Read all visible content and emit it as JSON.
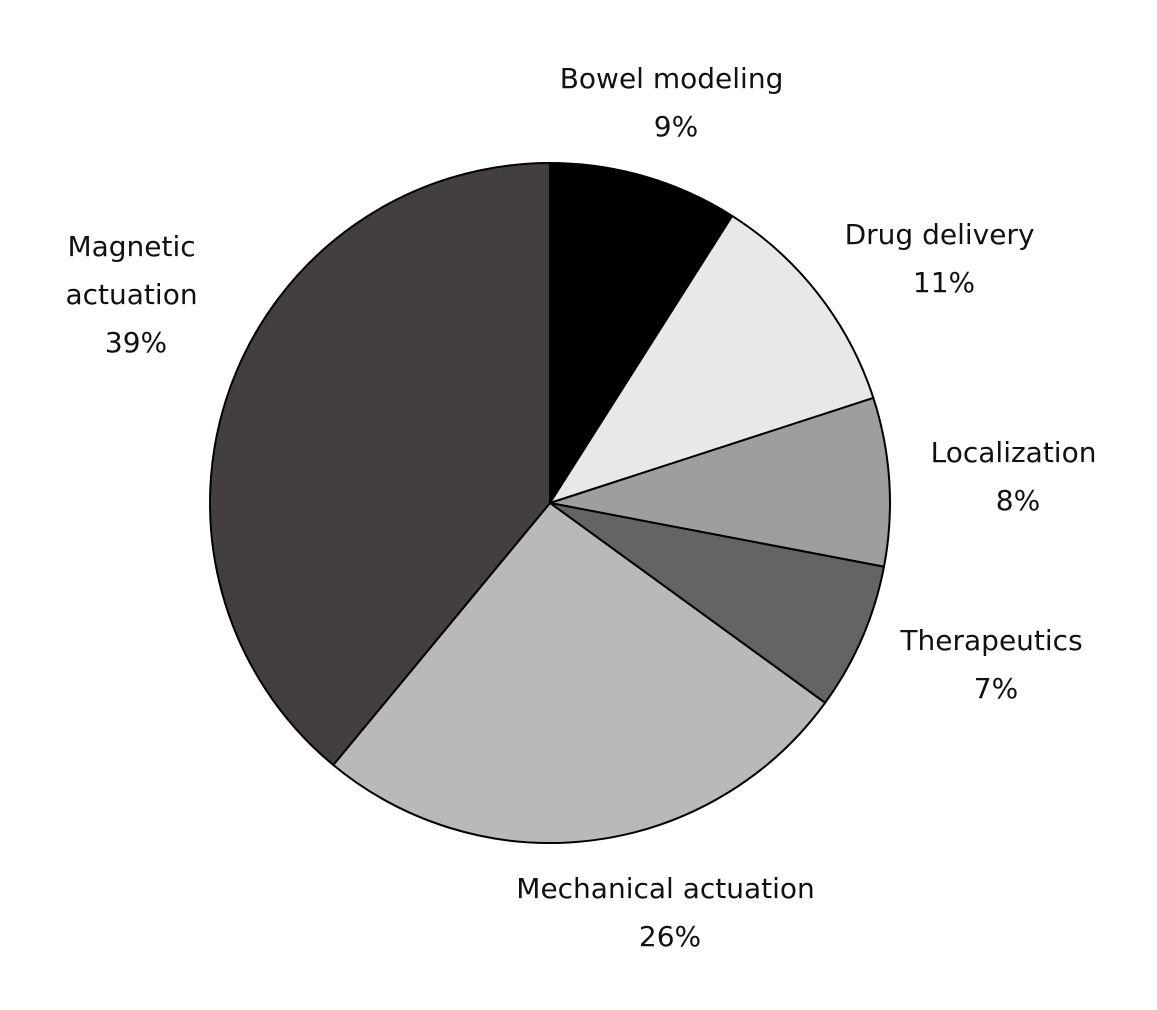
{
  "chart_data": {
    "type": "pie",
    "title": "",
    "start_angle_deg": 0,
    "direction": "clockwise",
    "slices": [
      {
        "label": "Bowel modeling",
        "value": 9,
        "value_label": "9%",
        "color": "#000000"
      },
      {
        "label": "Drug delivery",
        "value": 11,
        "value_label": "11%",
        "color": "#e8e8e8"
      },
      {
        "label": "Localization",
        "value": 8,
        "value_label": "8%",
        "color": "#9e9e9e"
      },
      {
        "label": "Therapeutics",
        "value": 7,
        "value_label": "7%",
        "color": "#646464"
      },
      {
        "label": "Mechanical actuation",
        "value": 26,
        "value_label": "26%",
        "color": "#b9b9b9"
      },
      {
        "label": "Magnetic actuation",
        "value": 39,
        "value_label": "39%",
        "color": "#433f3e"
      }
    ]
  }
}
